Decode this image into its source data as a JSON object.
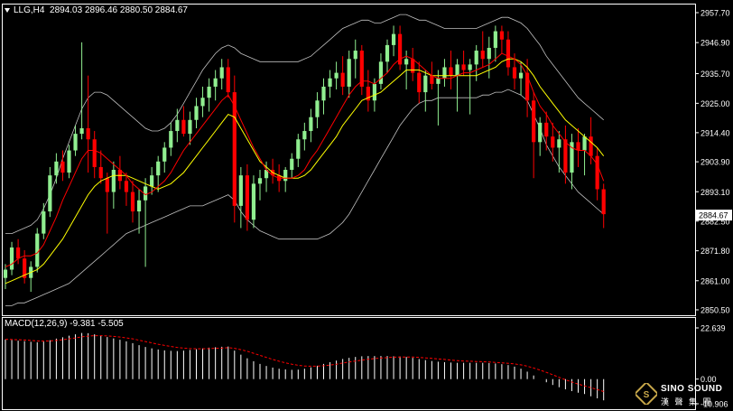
{
  "header": {
    "symbol": "LLG,H4",
    "ohlc": "2894.03 2896.46 2880.50 2884.67"
  },
  "macd_header": {
    "label": "MACD(12,26,9) -9.381 -5.505"
  },
  "logo": {
    "text_en": "SINO SOUND",
    "text_cn": "漢 聲 集 團",
    "icon": "ss-emblem-icon"
  },
  "colors": {
    "background": "#000000",
    "bull": "#90EE90",
    "bear": "#FF0000",
    "ma_fast": "#FF0000",
    "ma_slow": "#FFFF00",
    "bollinger": "#C0C0C0",
    "macd_hist": "#FFFFFF",
    "macd_signal": "#FF0000",
    "axis": "#FFFFFF",
    "price_tag_bg": "#FFFFFF"
  },
  "chart_data": [
    {
      "type": "candlestick",
      "panel": "main",
      "symbol": "LLG",
      "timeframe": "H4",
      "ylim": [
        2850.5,
        2957.7
      ],
      "yticks": [
        "2957.70",
        "2946.90",
        "2935.70",
        "2925.00",
        "2914.40",
        "2903.90",
        "2893.10",
        "2882.50",
        "2871.80",
        "2861.00",
        "2850.50"
      ],
      "current_price": "2884.67",
      "grid": false,
      "candles": [
        [
          2862,
          2867,
          2858,
          2865
        ],
        [
          2865,
          2875,
          2863,
          2873
        ],
        [
          2873,
          2876,
          2867,
          2869
        ],
        [
          2869,
          2872,
          2860,
          2862
        ],
        [
          2862,
          2868,
          2857,
          2866
        ],
        [
          2866,
          2880,
          2864,
          2878
        ],
        [
          2878,
          2889,
          2876,
          2886
        ],
        [
          2886,
          2902,
          2884,
          2899
        ],
        [
          2899,
          2907,
          2896,
          2904
        ],
        [
          2904,
          2908,
          2897,
          2900
        ],
        [
          2900,
          2910,
          2898,
          2908
        ],
        [
          2908,
          2917,
          2906,
          2914
        ],
        [
          2914,
          2947,
          2912,
          2916
        ],
        [
          2916,
          2935,
          2900,
          2912
        ],
        [
          2912,
          2915,
          2898,
          2902
        ],
        [
          2902,
          2908,
          2896,
          2898
        ],
        [
          2898,
          2900,
          2878,
          2893
        ],
        [
          2893,
          2904,
          2887,
          2901
        ],
        [
          2901,
          2906,
          2894,
          2897
        ],
        [
          2897,
          2900,
          2888,
          2893
        ],
        [
          2893,
          2897,
          2882,
          2886
        ],
        [
          2886,
          2894,
          2878,
          2890
        ],
        [
          2890,
          2898,
          2866,
          2895
        ],
        [
          2895,
          2902,
          2892,
          2899
        ],
        [
          2899,
          2906,
          2893,
          2904
        ],
        [
          2904,
          2911,
          2900,
          2909
        ],
        [
          2909,
          2918,
          2906,
          2915
        ],
        [
          2915,
          2923,
          2911,
          2919
        ],
        [
          2919,
          2924,
          2913,
          2914
        ],
        [
          2914,
          2922,
          2910,
          2919
        ],
        [
          2919,
          2927,
          2916,
          2924
        ],
        [
          2924,
          2931,
          2920,
          2927
        ],
        [
          2927,
          2934,
          2922,
          2931
        ],
        [
          2931,
          2937,
          2926,
          2934
        ],
        [
          2934,
          2941,
          2930,
          2938
        ],
        [
          2938,
          2941,
          2927,
          2929
        ],
        [
          2929,
          2935,
          2882,
          2888
        ],
        [
          2888,
          2902,
          2880,
          2899
        ],
        [
          2899,
          2903,
          2879,
          2883
        ],
        [
          2883,
          2899,
          2880,
          2896
        ],
        [
          2896,
          2901,
          2890,
          2898
        ],
        [
          2898,
          2904,
          2893,
          2901
        ],
        [
          2901,
          2905,
          2896,
          2899
        ],
        [
          2899,
          2903,
          2893,
          2897
        ],
        [
          2897,
          2902,
          2893,
          2901
        ],
        [
          2901,
          2907,
          2898,
          2905
        ],
        [
          2905,
          2914,
          2902,
          2912
        ],
        [
          2912,
          2918,
          2908,
          2915
        ],
        [
          2915,
          2923,
          2911,
          2920
        ],
        [
          2920,
          2929,
          2916,
          2926
        ],
        [
          2926,
          2934,
          2921,
          2931
        ],
        [
          2931,
          2937,
          2927,
          2934
        ],
        [
          2934,
          2940,
          2930,
          2936
        ],
        [
          2936,
          2942,
          2928,
          2931
        ],
        [
          2931,
          2944,
          2927,
          2941
        ],
        [
          2941,
          2948,
          2934,
          2944
        ],
        [
          2944,
          2946,
          2928,
          2931
        ],
        [
          2931,
          2937,
          2922,
          2926
        ],
        [
          2926,
          2934,
          2922,
          2932
        ],
        [
          2932,
          2943,
          2930,
          2940
        ],
        [
          2940,
          2948,
          2936,
          2946
        ],
        [
          2946,
          2953,
          2942,
          2950
        ],
        [
          2950,
          2953,
          2937,
          2939
        ],
        [
          2939,
          2944,
          2930,
          2941
        ],
        [
          2941,
          2945,
          2933,
          2936
        ],
        [
          2936,
          2940,
          2925,
          2929
        ],
        [
          2929,
          2937,
          2922,
          2935
        ],
        [
          2935,
          2940,
          2930,
          2932
        ],
        [
          2932,
          2937,
          2917,
          2934
        ],
        [
          2934,
          2941,
          2931,
          2938
        ],
        [
          2938,
          2944,
          2930,
          2935
        ],
        [
          2935,
          2941,
          2922,
          2939
        ],
        [
          2939,
          2944,
          2935,
          2937
        ],
        [
          2937,
          2941,
          2921,
          2939
        ],
        [
          2939,
          2946,
          2933,
          2944
        ],
        [
          2944,
          2951,
          2938,
          2941
        ],
        [
          2941,
          2949,
          2934,
          2945
        ],
        [
          2945,
          2953,
          2940,
          2951
        ],
        [
          2951,
          2953,
          2943,
          2948
        ],
        [
          2948,
          2951,
          2935,
          2938
        ],
        [
          2938,
          2943,
          2930,
          2934
        ],
        [
          2934,
          2940,
          2928,
          2936
        ],
        [
          2936,
          2941,
          2920,
          2926
        ],
        [
          2926,
          2929,
          2898,
          2911
        ],
        [
          2911,
          2920,
          2906,
          2918
        ],
        [
          2918,
          2922,
          2908,
          2913
        ],
        [
          2913,
          2918,
          2904,
          2909
        ],
        [
          2909,
          2915,
          2900,
          2912
        ],
        [
          2912,
          2917,
          2896,
          2900
        ],
        [
          2900,
          2914,
          2894,
          2911
        ],
        [
          2911,
          2916,
          2902,
          2908
        ],
        [
          2908,
          2914,
          2899,
          2913
        ],
        [
          2913,
          2920,
          2903,
          2906
        ],
        [
          2906,
          2909,
          2890,
          2894
        ],
        [
          2894,
          2896,
          2880,
          2885
        ]
      ],
      "ma_fast": [
        2866,
        2867,
        2869,
        2870,
        2870,
        2871,
        2874,
        2879,
        2884,
        2890,
        2895,
        2900,
        2905,
        2908,
        2908,
        2907,
        2905,
        2903,
        2901,
        2899,
        2896,
        2894,
        2892,
        2893,
        2895,
        2897,
        2900,
        2904,
        2908,
        2911,
        2914,
        2917,
        2920,
        2923,
        2926,
        2928,
        2924,
        2919,
        2914,
        2909,
        2905,
        2901,
        2899,
        2898,
        2898,
        2898,
        2899,
        2901,
        2905,
        2908,
        2912,
        2916,
        2920,
        2924,
        2928,
        2931,
        2933,
        2933,
        2932,
        2934,
        2936,
        2939,
        2941,
        2942,
        2941,
        2939,
        2937,
        2935,
        2934,
        2934,
        2934,
        2935,
        2936,
        2936,
        2937,
        2938,
        2939,
        2941,
        2943,
        2942,
        2941,
        2939,
        2935,
        2929,
        2924,
        2921,
        2917,
        2914,
        2911,
        2909,
        2908,
        2908,
        2906,
        2903,
        2897
      ],
      "ma_slow": [
        2860,
        2861,
        2862,
        2863,
        2864,
        2865,
        2867,
        2870,
        2873,
        2876,
        2880,
        2884,
        2888,
        2892,
        2895,
        2897,
        2898,
        2899,
        2899,
        2899,
        2898,
        2897,
        2896,
        2895,
        2894,
        2895,
        2896,
        2898,
        2900,
        2903,
        2906,
        2909,
        2912,
        2915,
        2918,
        2921,
        2920,
        2916,
        2912,
        2908,
        2904,
        2902,
        2900,
        2899,
        2898,
        2898,
        2898,
        2899,
        2901,
        2904,
        2907,
        2910,
        2913,
        2917,
        2920,
        2923,
        2926,
        2927,
        2928,
        2929,
        2931,
        2933,
        2935,
        2937,
        2937,
        2937,
        2936,
        2935,
        2935,
        2935,
        2935,
        2935,
        2935,
        2935,
        2935,
        2936,
        2937,
        2938,
        2940,
        2941,
        2941,
        2940,
        2938,
        2935,
        2931,
        2928,
        2925,
        2922,
        2919,
        2917,
        2915,
        2913,
        2911,
        2909,
        2906
      ],
      "bb_upper": [
        2878,
        2878,
        2879,
        2880,
        2881,
        2883,
        2887,
        2892,
        2898,
        2905,
        2911,
        2917,
        2923,
        2927,
        2929,
        2929,
        2928,
        2926,
        2924,
        2922,
        2920,
        2918,
        2916,
        2915,
        2915,
        2916,
        2918,
        2921,
        2925,
        2929,
        2933,
        2937,
        2940,
        2943,
        2945,
        2946,
        2945,
        2943,
        2942,
        2941,
        2940,
        2940,
        2940,
        2940,
        2940,
        2940,
        2940,
        2941,
        2942,
        2944,
        2946,
        2948,
        2950,
        2952,
        2953,
        2954,
        2955,
        2955,
        2954,
        2954,
        2955,
        2956,
        2957,
        2957,
        2956,
        2955,
        2955,
        2954,
        2953,
        2952,
        2952,
        2952,
        2952,
        2952,
        2952,
        2953,
        2954,
        2955,
        2956,
        2956,
        2955,
        2954,
        2952,
        2949,
        2946,
        2942,
        2939,
        2936,
        2933,
        2930,
        2927,
        2925,
        2923,
        2921,
        2919
      ],
      "bb_lower": [
        2852,
        2852,
        2853,
        2853,
        2854,
        2855,
        2856,
        2857,
        2858,
        2859,
        2860,
        2862,
        2864,
        2866,
        2868,
        2870,
        2872,
        2874,
        2876,
        2878,
        2879,
        2880,
        2881,
        2882,
        2883,
        2884,
        2885,
        2886,
        2887,
        2888,
        2888,
        2888,
        2889,
        2890,
        2891,
        2892,
        2890,
        2886,
        2883,
        2881,
        2879,
        2878,
        2877,
        2876,
        2876,
        2876,
        2876,
        2876,
        2876,
        2876,
        2877,
        2878,
        2880,
        2882,
        2885,
        2889,
        2893,
        2897,
        2901,
        2905,
        2909,
        2913,
        2917,
        2920,
        2923,
        2925,
        2926,
        2926,
        2927,
        2927,
        2927,
        2927,
        2927,
        2927,
        2927,
        2928,
        2928,
        2929,
        2929,
        2930,
        2929,
        2928,
        2926,
        2921,
        2916,
        2910,
        2906,
        2902,
        2899,
        2896,
        2893,
        2891,
        2889,
        2887,
        2885
      ]
    },
    {
      "type": "bar",
      "panel": "macd",
      "title": "MACD(12,26,9) -9.381 -5.505",
      "params": [
        12,
        26,
        9
      ],
      "macd_value": -9.381,
      "signal_value": -5.505,
      "ylim": [
        -10.906,
        22.639
      ],
      "yticks": [
        "22.639",
        "0.00",
        "-10.906"
      ],
      "histogram": [
        17.5,
        17.3,
        17.0,
        16.8,
        16.5,
        16.3,
        16.6,
        17.2,
        17.9,
        18.5,
        19.2,
        19.8,
        20.4,
        20.3,
        19.8,
        19.2,
        18.6,
        18.0,
        17.4,
        16.7,
        15.9,
        15.0,
        14.2,
        13.6,
        13.1,
        12.7,
        12.5,
        12.4,
        12.6,
        12.9,
        13.2,
        13.6,
        13.9,
        14.1,
        14.3,
        14.4,
        12.6,
        10.8,
        9.2,
        7.9,
        6.7,
        5.8,
        5.1,
        4.6,
        4.3,
        4.1,
        4.2,
        4.6,
        5.2,
        5.9,
        6.7,
        7.5,
        8.2,
        8.9,
        9.4,
        9.8,
        10.1,
        10.2,
        10.2,
        10.2,
        10.2,
        10.1,
        10.0,
        9.8,
        9.4,
        8.9,
        8.4,
        8.0,
        7.7,
        7.5,
        7.3,
        7.2,
        7.2,
        7.2,
        7.2,
        7.2,
        7.1,
        6.9,
        6.6,
        6.2,
        5.5,
        4.6,
        3.3,
        1.6,
        0.0,
        -1.4,
        -2.6,
        -3.6,
        -4.5,
        -5.3,
        -6.0,
        -6.6,
        -7.6,
        -8.5,
        -9.381
      ],
      "signal": [
        17.6,
        17.5,
        17.4,
        17.3,
        17.1,
        16.9,
        16.8,
        16.9,
        17.1,
        17.4,
        17.8,
        18.2,
        18.7,
        19.0,
        19.2,
        19.2,
        19.1,
        18.9,
        18.6,
        18.2,
        17.8,
        17.2,
        16.6,
        16.0,
        15.4,
        14.9,
        14.4,
        14.0,
        13.7,
        13.5,
        13.4,
        13.4,
        13.5,
        13.6,
        13.7,
        13.9,
        13.6,
        13.0,
        12.3,
        11.4,
        10.5,
        9.6,
        8.7,
        7.9,
        7.2,
        6.6,
        6.1,
        5.8,
        5.7,
        5.7,
        5.9,
        6.2,
        6.6,
        7.1,
        7.6,
        8.0,
        8.4,
        8.8,
        9.1,
        9.3,
        9.5,
        9.7,
        9.8,
        9.8,
        9.8,
        9.6,
        9.4,
        9.2,
        8.9,
        8.7,
        8.4,
        8.2,
        8.0,
        7.9,
        7.8,
        7.7,
        7.6,
        7.4,
        7.2,
        7.0,
        6.7,
        6.3,
        5.7,
        4.9,
        4.0,
        3.0,
        1.9,
        0.8,
        -0.3,
        -1.3,
        -2.2,
        -3.0,
        -3.8,
        -4.6,
        -5.505
      ]
    }
  ]
}
